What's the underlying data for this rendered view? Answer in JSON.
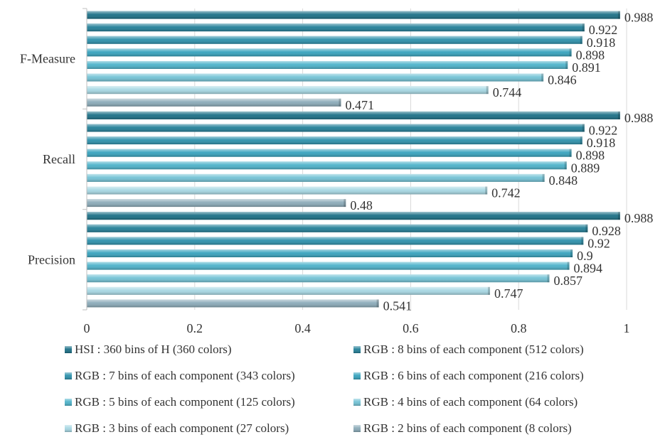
{
  "chart_data": {
    "type": "bar",
    "orientation": "horizontal",
    "title": "",
    "xlabel": "",
    "ylabel": "",
    "xlim": [
      0,
      1
    ],
    "x_ticks": [
      "0",
      "0.2",
      "0.4",
      "0.6",
      "0.8",
      "1"
    ],
    "grid": "vertical",
    "legend_position": "bottom",
    "categories": [
      "F-Measure",
      "Recall",
      "Precision"
    ],
    "series": [
      {
        "name": "HSI : 360 bins of  H (360 colors)",
        "color": "#1a6f86",
        "values": [
          0.988,
          0.988,
          0.988
        ],
        "labels": [
          "0.988",
          "0.988",
          "0.988"
        ]
      },
      {
        "name": "RGB : 8 bins of each component (512 colors)",
        "color": "#227f98",
        "values": [
          0.922,
          0.922,
          0.928
        ],
        "labels": [
          "0.922",
          "0.922",
          "0.928"
        ]
      },
      {
        "name": "RGB : 7 bins of each component (343 colors)",
        "color": "#2b90ab",
        "values": [
          0.918,
          0.918,
          0.92
        ],
        "labels": [
          "0.918",
          "0.918",
          "0.92"
        ]
      },
      {
        "name": "RGB : 6 bins of each component (216 colors)",
        "color": "#35a2bd",
        "values": [
          0.898,
          0.898,
          0.9
        ],
        "labels": [
          "0.898",
          "0.898",
          "0.9"
        ]
      },
      {
        "name": "RGB : 5 bins of each component (125 colors)",
        "color": "#4cb2ca",
        "values": [
          0.891,
          0.889,
          0.894
        ],
        "labels": [
          "0.891",
          "0.889",
          "0.894"
        ]
      },
      {
        "name": "RGB : 4 bins of each component (64 colors)",
        "color": "#72c2d5",
        "values": [
          0.846,
          0.848,
          0.857
        ],
        "labels": [
          "0.846",
          "0.848",
          "0.857"
        ]
      },
      {
        "name": "RGB : 3 bins of each component (27 colors)",
        "color": "#a6d7e3",
        "values": [
          0.744,
          0.742,
          0.747
        ],
        "labels": [
          "0.744",
          "0.742",
          "0.747"
        ]
      },
      {
        "name": "RGB : 2 bins of each component (8 colors)",
        "color": "#8aaab8",
        "values": [
          0.471,
          0.48,
          0.541
        ],
        "labels": [
          "0.471",
          "0.48",
          "0.541"
        ]
      }
    ]
  }
}
